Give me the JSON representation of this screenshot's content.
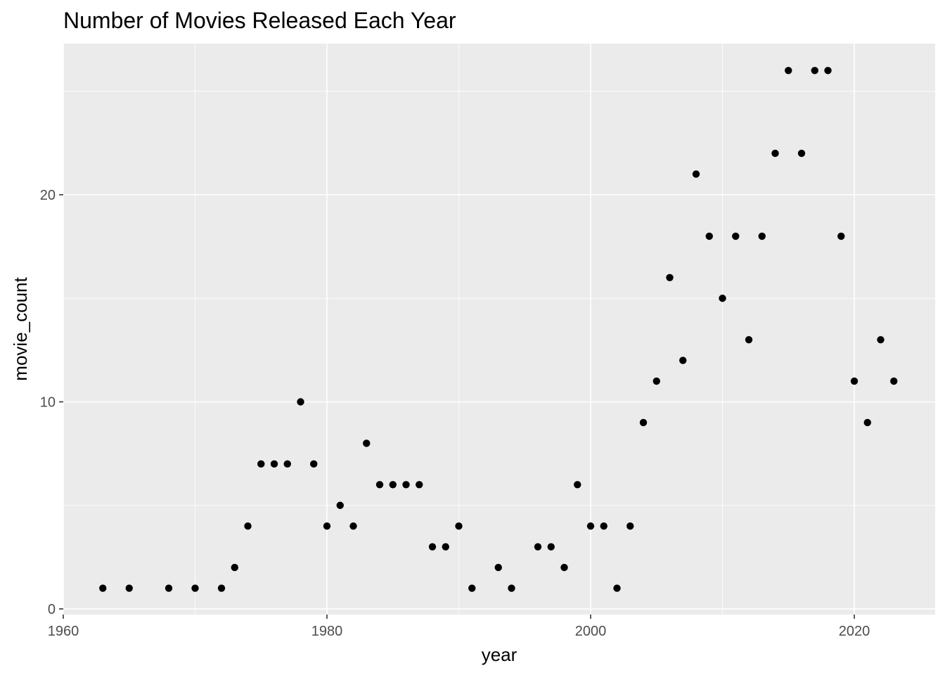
{
  "chart_data": {
    "type": "scatter",
    "title": "Number of Movies Released Each Year",
    "xlabel": "year",
    "ylabel": "movie_count",
    "xlim": [
      1960,
      2026
    ],
    "ylim": [
      0,
      26
    ],
    "x_ticks": [
      1960,
      1980,
      2000,
      2020
    ],
    "y_ticks": [
      0,
      10,
      20
    ],
    "x_tick_labels": [
      "1960",
      "1980",
      "2000",
      "2020"
    ],
    "y_tick_labels": [
      "0",
      "10",
      "20"
    ],
    "grid": true,
    "point_color": "#000000",
    "panel_color": "#ebebeb",
    "points": [
      {
        "x": 1963,
        "y": 1
      },
      {
        "x": 1965,
        "y": 1
      },
      {
        "x": 1968,
        "y": 1
      },
      {
        "x": 1970,
        "y": 1
      },
      {
        "x": 1972,
        "y": 1
      },
      {
        "x": 1973,
        "y": 2
      },
      {
        "x": 1974,
        "y": 4
      },
      {
        "x": 1975,
        "y": 7
      },
      {
        "x": 1976,
        "y": 7
      },
      {
        "x": 1977,
        "y": 7
      },
      {
        "x": 1978,
        "y": 10
      },
      {
        "x": 1979,
        "y": 7
      },
      {
        "x": 1980,
        "y": 4
      },
      {
        "x": 1981,
        "y": 5
      },
      {
        "x": 1982,
        "y": 4
      },
      {
        "x": 1983,
        "y": 8
      },
      {
        "x": 1984,
        "y": 6
      },
      {
        "x": 1985,
        "y": 6
      },
      {
        "x": 1986,
        "y": 6
      },
      {
        "x": 1987,
        "y": 6
      },
      {
        "x": 1988,
        "y": 3
      },
      {
        "x": 1989,
        "y": 3
      },
      {
        "x": 1990,
        "y": 4
      },
      {
        "x": 1991,
        "y": 1
      },
      {
        "x": 1993,
        "y": 2
      },
      {
        "x": 1994,
        "y": 1
      },
      {
        "x": 1996,
        "y": 3
      },
      {
        "x": 1997,
        "y": 3
      },
      {
        "x": 1998,
        "y": 2
      },
      {
        "x": 1999,
        "y": 6
      },
      {
        "x": 2000,
        "y": 4
      },
      {
        "x": 2001,
        "y": 4
      },
      {
        "x": 2002,
        "y": 1
      },
      {
        "x": 2003,
        "y": 4
      },
      {
        "x": 2004,
        "y": 9
      },
      {
        "x": 2005,
        "y": 11
      },
      {
        "x": 2006,
        "y": 16
      },
      {
        "x": 2007,
        "y": 12
      },
      {
        "x": 2008,
        "y": 21
      },
      {
        "x": 2009,
        "y": 18
      },
      {
        "x": 2010,
        "y": 15
      },
      {
        "x": 2011,
        "y": 18
      },
      {
        "x": 2012,
        "y": 13
      },
      {
        "x": 2013,
        "y": 18
      },
      {
        "x": 2014,
        "y": 22
      },
      {
        "x": 2015,
        "y": 26
      },
      {
        "x": 2016,
        "y": 22
      },
      {
        "x": 2017,
        "y": 26
      },
      {
        "x": 2018,
        "y": 26
      },
      {
        "x": 2019,
        "y": 18
      },
      {
        "x": 2020,
        "y": 11
      },
      {
        "x": 2021,
        "y": 9
      },
      {
        "x": 2022,
        "y": 13
      },
      {
        "x": 2023,
        "y": 11
      }
    ]
  }
}
